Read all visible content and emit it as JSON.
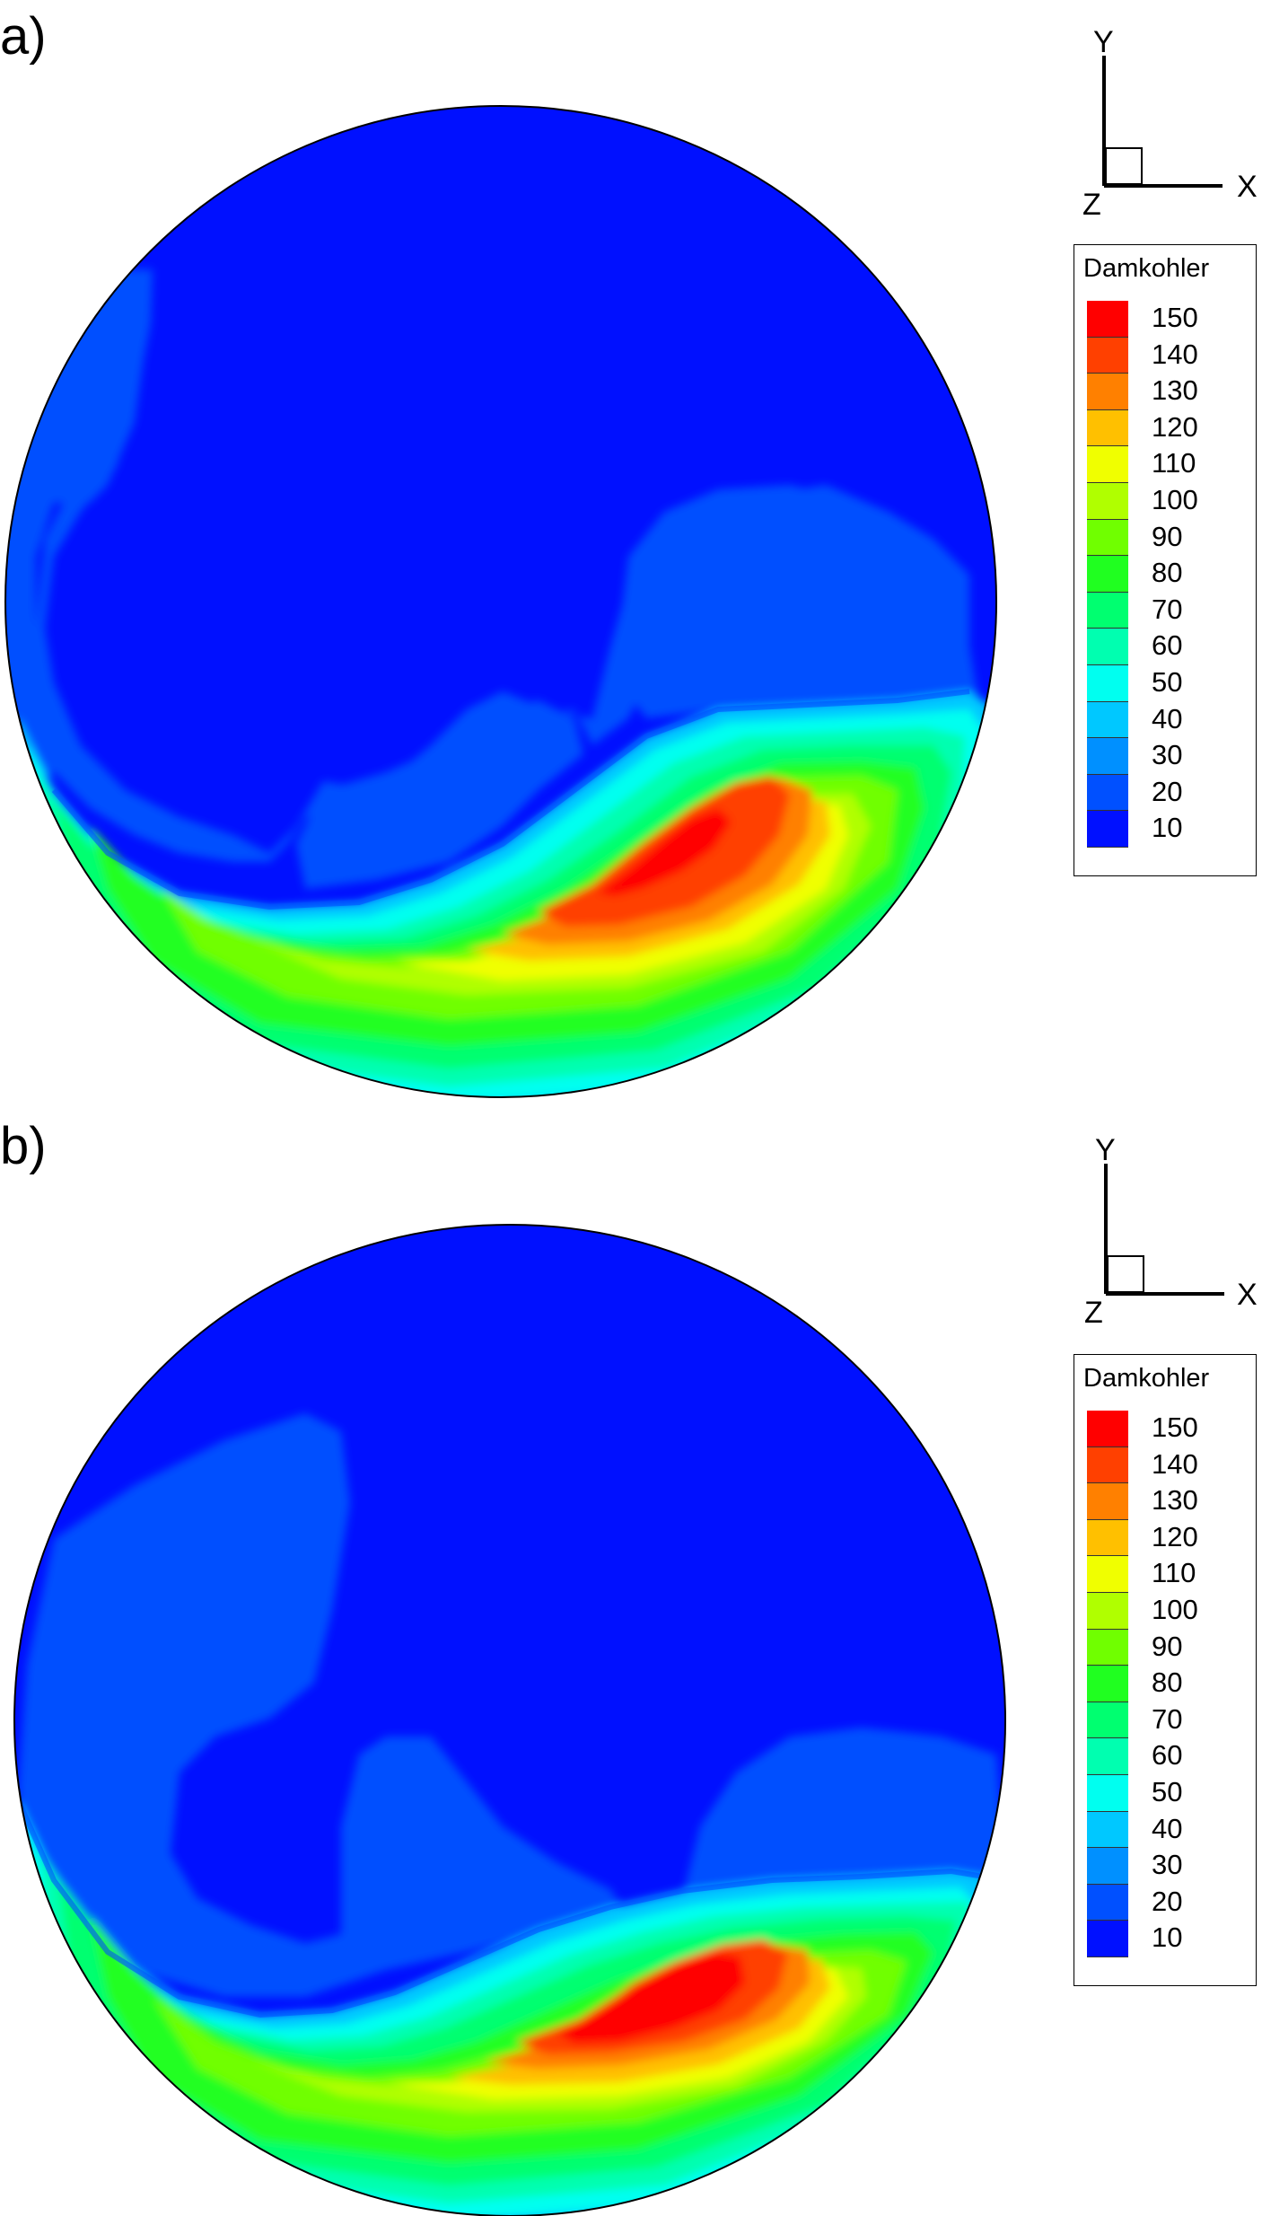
{
  "chart_data": [
    {
      "type": "heatmap",
      "panel_label": "a)",
      "legend": {
        "title": "Damkohler",
        "levels": [
          150,
          140,
          130,
          120,
          110,
          100,
          90,
          80,
          70,
          60,
          50,
          40,
          30,
          20,
          10
        ],
        "level_labels": [
          "150",
          "140",
          "130",
          "120",
          "110",
          "100",
          "90",
          "80",
          "70",
          "60",
          "50",
          "40",
          "30",
          "20",
          "10"
        ],
        "colors": [
          "#ff0000",
          "#ff4000",
          "#ff8000",
          "#ffc000",
          "#f0ff00",
          "#b0ff00",
          "#70ff00",
          "#20ff20",
          "#00ff70",
          "#00ffb0",
          "#00fff0",
          "#00c8ff",
          "#0090ff",
          "#0050ff",
          "#0010ff"
        ]
      },
      "axes_triad": {
        "y_label": "Y",
        "x_label": "X",
        "z_label": "Z"
      }
    },
    {
      "type": "heatmap",
      "panel_label": "b)",
      "legend": {
        "title": "Damkohler",
        "levels": [
          150,
          140,
          130,
          120,
          110,
          100,
          90,
          80,
          70,
          60,
          50,
          40,
          30,
          20,
          10
        ],
        "level_labels": [
          "150",
          "140",
          "130",
          "120",
          "110",
          "100",
          "90",
          "80",
          "70",
          "60",
          "50",
          "40",
          "30",
          "20",
          "10"
        ],
        "colors": [
          "#ff0000",
          "#ff4000",
          "#ff8000",
          "#ffc000",
          "#f0ff00",
          "#b0ff00",
          "#70ff00",
          "#20ff20",
          "#00ff70",
          "#00ffb0",
          "#00fff0",
          "#00c8ff",
          "#0090ff",
          "#0050ff",
          "#0010ff"
        ]
      },
      "axes_triad": {
        "y_label": "Y",
        "x_label": "X",
        "z_label": "Z"
      }
    }
  ]
}
